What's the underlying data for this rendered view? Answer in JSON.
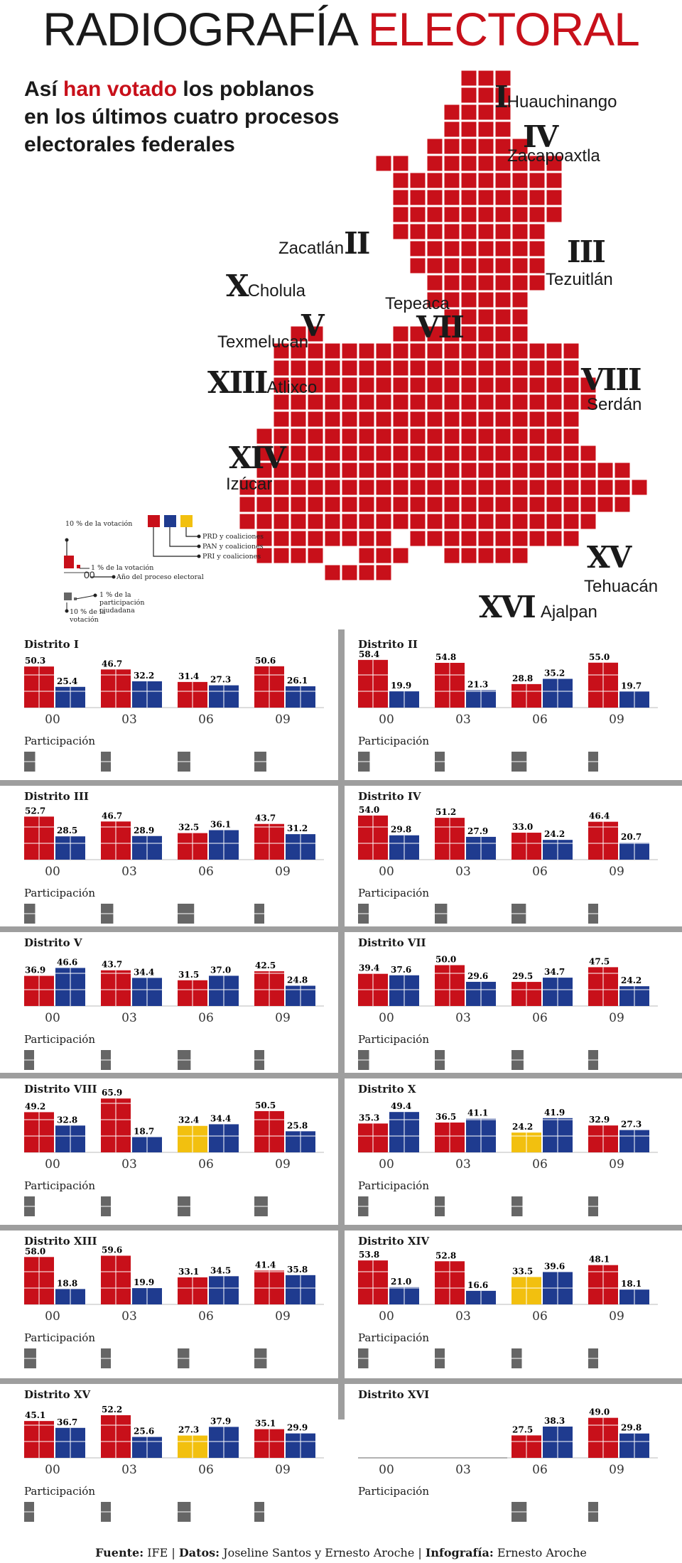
{
  "header": {
    "title_part1": "RADIOGRAFÍA",
    "title_part2": "ELECTORAL",
    "subtitle_line1_a": "Así ",
    "subtitle_line1_hl": "han votado",
    "subtitle_line1_b": " los poblanos",
    "subtitle_line2": "en los últimos cuatro procesos",
    "subtitle_line3": "electorales federales"
  },
  "colors": {
    "pri": "#c8101a",
    "pan": "#1f3b8f",
    "prd": "#f2c00f",
    "part": "#666666",
    "accent": "#c8101a"
  },
  "map_labels": [
    {
      "num": "I",
      "name": "Huauchinango"
    },
    {
      "num": "IV",
      "name": "Zacapoaxtla"
    },
    {
      "num": "II",
      "name": "Zacatlán"
    },
    {
      "num": "III",
      "name": "Tezuitlán"
    },
    {
      "num": "X",
      "name": "Cholula"
    },
    {
      "num": "V",
      "name": "Texmelucan"
    },
    {
      "num": "VII",
      "name": "Tepeaca"
    },
    {
      "num": "XIII",
      "name": "Atlixco"
    },
    {
      "num": "VIII",
      "name": "Serdán"
    },
    {
      "num": "XIV",
      "name": "Izúcar"
    },
    {
      "num": "XV",
      "name": "Tehuacán"
    },
    {
      "num": "XVI",
      "name": "Ajalpan"
    }
  ],
  "legend": {
    "ten_pct_vote": "10 % de la votación",
    "one_pct_vote": "1 % de la votación",
    "year_label": "Año del proceso electoral",
    "year_sample": "00",
    "prd": "PRD y coaliciones",
    "pan": "PAN y coaliciones",
    "pri": "PRI y coaliciones",
    "one_pct_part": "1 % de la participación ciudadana",
    "ten_pct_vote_2": "10 % de la votación"
  },
  "participation_label": "Participación",
  "years": [
    "00",
    "03",
    "06",
    "09"
  ],
  "districts": [
    {
      "name": "Distrito I",
      "results": [
        {
          "pri": 50.3,
          "pan": 25.4
        },
        {
          "pri": 46.7,
          "pan": 32.2
        },
        {
          "pri": 31.4,
          "pan": 27.3
        },
        {
          "pri": 50.6,
          "pan": 26.1
        }
      ],
      "participation": [
        {
          "value": "",
          "level": 0.32
        },
        {
          "value": "",
          "level": 0.28
        },
        {
          "value": "",
          "level": 0.37
        },
        {
          "value": "",
          "level": 0.35
        }
      ]
    },
    {
      "name": "Distrito II",
      "results": [
        {
          "pri": 58.4,
          "pan": 19.9
        },
        {
          "pri": 54.8,
          "pan": 21.3
        },
        {
          "pri": 28.8,
          "pan": 35.2
        },
        {
          "pri": 55.0,
          "pan": 19.7
        }
      ],
      "participation": [
        {
          "value": "",
          "level": 0.34
        },
        {
          "value": "",
          "level": 0.22
        },
        {
          "value": "",
          "level": 0.44
        },
        {
          "value": "",
          "level": 0.2
        }
      ]
    },
    {
      "name": "Distrito III",
      "results": [
        {
          "pri": 52.7,
          "pan": 28.5
        },
        {
          "pri": 46.7,
          "pan": 28.9
        },
        {
          "pri": 32.5,
          "pan": 36.1
        },
        {
          "pri": 43.7,
          "pan": 31.2
        }
      ],
      "participation": [
        {
          "value": "",
          "level": 0.32
        },
        {
          "value": "",
          "level": 0.36
        },
        {
          "value": "",
          "level": 0.48
        },
        {
          "value": "",
          "level": 0.25
        }
      ]
    },
    {
      "name": "Distrito IV",
      "results": [
        {
          "pri": 54.0,
          "pan": 29.8
        },
        {
          "pri": 51.2,
          "pan": 27.9
        },
        {
          "pri": 33.0,
          "pan": 24.2
        },
        {
          "pri": 46.4,
          "pan": 20.7
        }
      ],
      "participation": [
        {
          "value": "",
          "level": 0.31
        },
        {
          "value": "",
          "level": 0.36
        },
        {
          "value": "",
          "level": 0.42
        },
        {
          "value": "",
          "level": 0.2
        }
      ]
    },
    {
      "name": "Distrito V",
      "results": [
        {
          "pri": 36.9,
          "pan": 46.6
        },
        {
          "pri": 43.7,
          "pan": 34.4
        },
        {
          "pri": 31.5,
          "pan": 37.0
        },
        {
          "pri": 42.5,
          "pan": 24.8
        }
      ],
      "participation": [
        {
          "value": "",
          "level": 0.2
        },
        {
          "value": "",
          "level": 0.2
        },
        {
          "value": "",
          "level": 0.38
        },
        {
          "value": "",
          "level": 0.26
        }
      ]
    },
    {
      "name": "Distrito VII",
      "results": [
        {
          "pri": 39.4,
          "pan": 37.6
        },
        {
          "pri": 50.0,
          "pan": 29.6
        },
        {
          "pri": 29.5,
          "pan": 34.7
        },
        {
          "pri": 47.5,
          "pan": 24.2
        }
      ],
      "participation": [
        {
          "value": "",
          "level": 0.32
        },
        {
          "value": "",
          "level": 0.2
        },
        {
          "value": "",
          "level": 0.35
        },
        {
          "value": "",
          "level": 0.24
        }
      ]
    },
    {
      "name": "Distrito VIII",
      "results": [
        {
          "pri": 49.2,
          "pan": 32.8
        },
        {
          "pri": 65.9,
          "pan": 18.7
        },
        {
          "prd": 32.4,
          "pan": 34.4
        },
        {
          "pri": 50.5,
          "pan": 25.8
        }
      ],
      "participation": [
        {
          "value": "",
          "level": 0.31
        },
        {
          "value": "",
          "level": 0.22
        },
        {
          "value": "",
          "level": 0.37
        },
        {
          "value": "",
          "level": 0.39
        }
      ]
    },
    {
      "name": "Distrito X",
      "results": [
        {
          "pri": 35.3,
          "pan": 49.4
        },
        {
          "pri": 36.5,
          "pan": 41.1
        },
        {
          "prd": 24.2,
          "pan": 41.9
        },
        {
          "pri": 32.9,
          "pan": 27.3
        }
      ],
      "participation": [
        {
          "value": "",
          "level": 0.3
        },
        {
          "value": "",
          "level": 0.26
        },
        {
          "value": "",
          "level": 0.32
        },
        {
          "value": "",
          "level": 0.26
        }
      ]
    },
    {
      "name": "Distrito XIII",
      "results": [
        {
          "pri": 58.0,
          "pan": 18.8
        },
        {
          "pri": 59.6,
          "pan": 19.9
        },
        {
          "pri": 33.1,
          "pan": 34.5
        },
        {
          "pri": 41.4,
          "pan": 35.8
        }
      ],
      "participation": [
        {
          "value": "",
          "level": 0.35
        },
        {
          "value": "",
          "level": 0.23
        },
        {
          "value": "",
          "level": 0.34
        },
        {
          "value": "",
          "level": 0.36
        }
      ]
    },
    {
      "name": "Distrito XIV",
      "results": [
        {
          "pri": 53.8,
          "pan": 21.0
        },
        {
          "pri": 52.8,
          "pan": 16.6
        },
        {
          "prd": 33.5,
          "pan": 39.6
        },
        {
          "pri": 48.1,
          "pan": 18.1
        }
      ],
      "participation": [
        {
          "value": "",
          "level": 0.3
        },
        {
          "value": "",
          "level": 0.22
        },
        {
          "value": "",
          "level": 0.3
        },
        {
          "value": "",
          "level": 0.2
        }
      ]
    },
    {
      "name": "Distrito XV",
      "results": [
        {
          "pri": 45.1,
          "pan": 36.7
        },
        {
          "pri": 52.2,
          "pan": 25.6
        },
        {
          "prd": 27.3,
          "pan": 37.9
        },
        {
          "pri": 35.1,
          "pan": 29.9
        }
      ],
      "participation": [
        {
          "value": "",
          "level": 0.22
        },
        {
          "value": "",
          "level": 0.28
        },
        {
          "value": "",
          "level": 0.38
        },
        {
          "value": "",
          "level": 0.24
        }
      ]
    },
    {
      "name": "Distrito XVI",
      "results": [
        null,
        null,
        {
          "pri": 27.5,
          "pan": 38.3
        },
        {
          "pri": 49.0,
          "pan": 29.8
        }
      ],
      "participation": [
        null,
        null,
        {
          "value": "",
          "level": 0.44
        },
        {
          "value": "",
          "level": 0.23
        }
      ]
    }
  ],
  "footer": {
    "fuente_label": "Fuente:",
    "fuente": "IFE",
    "datos_label": "Datos:",
    "datos": "Joseline Santos y Ernesto Aroche",
    "info_label": "Infografía:",
    "info": "Ernesto Aroche"
  }
}
